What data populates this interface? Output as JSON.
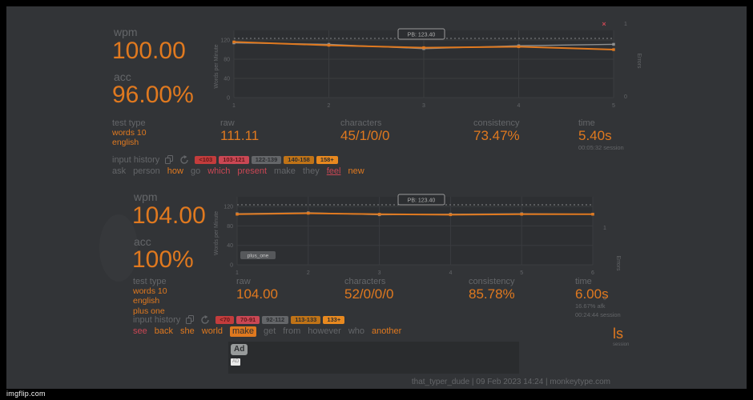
{
  "accent": "#e0791f",
  "watermark": "imgflip.com",
  "footer": "that_typer_dude | 09 Feb 2023 14:24 | monkeytype.com",
  "side_text": {
    "text": "ls",
    "sub": "session"
  },
  "ad": {
    "badge": "Ad",
    "badge_small": "AD"
  },
  "results": [
    {
      "wpm_label": "wpm",
      "wpm_value": "100.00",
      "acc_label": "acc",
      "acc_value": "96.00%",
      "test_type": {
        "label": "test type",
        "lines": [
          "words 10",
          "english"
        ]
      },
      "stats": [
        {
          "label": "raw",
          "value": "111.11"
        },
        {
          "label": "characters",
          "value": "45/1/0/0"
        },
        {
          "label": "consistency",
          "value": "73.47%"
        },
        {
          "label": "time",
          "value": "5.40s",
          "subs": [
            "00:05:32 session"
          ]
        }
      ],
      "input_history": {
        "label": "input history",
        "icons": [
          "copy-icon",
          "restart-icon"
        ],
        "legend": [
          {
            "text": "<103",
            "bg": "#c33c3c",
            "fg": "#5e1a1a"
          },
          {
            "text": "103-121",
            "bg": "#ca4754",
            "fg": "#5e1a1a"
          },
          {
            "text": "122-139",
            "bg": "#646669",
            "fg": "#2c2e31"
          },
          {
            "text": "140-158",
            "bg": "#bf7317",
            "fg": "#2c2e31"
          },
          {
            "text": "158+",
            "bg": "#e8891f",
            "fg": "#2c2e31"
          }
        ],
        "words": [
          {
            "text": "ask",
            "style": "gray"
          },
          {
            "text": "person",
            "style": "gray"
          },
          {
            "text": "how",
            "style": "orange"
          },
          {
            "text": "go",
            "style": "gray"
          },
          {
            "text": "which",
            "style": "red"
          },
          {
            "text": "present",
            "style": "red"
          },
          {
            "text": "make",
            "style": "gray"
          },
          {
            "text": "they",
            "style": "gray"
          },
          {
            "text": "feel",
            "style": "red error"
          },
          {
            "text": "new",
            "style": "orange"
          }
        ]
      }
    },
    {
      "wpm_label": "wpm",
      "wpm_value": "104.00",
      "acc_label": "acc",
      "acc_value": "100%",
      "test_type": {
        "label": "test type",
        "lines": [
          "words 10",
          "english",
          "plus one"
        ]
      },
      "stats": [
        {
          "label": "raw",
          "value": "104.00"
        },
        {
          "label": "characters",
          "value": "52/0/0/0"
        },
        {
          "label": "consistency",
          "value": "85.78%"
        },
        {
          "label": "time",
          "value": "6.00s",
          "subs": [
            "16.67% afk",
            "00:24:44 session"
          ]
        }
      ],
      "input_history": {
        "label": "input history",
        "icons": [
          "copy-icon",
          "restart-icon"
        ],
        "legend": [
          {
            "text": "<70",
            "bg": "#c33c3c",
            "fg": "#5e1a1a"
          },
          {
            "text": "70-91",
            "bg": "#ca4754",
            "fg": "#5e1a1a"
          },
          {
            "text": "92-112",
            "bg": "#646669",
            "fg": "#2c2e31"
          },
          {
            "text": "113-133",
            "bg": "#bf7317",
            "fg": "#2c2e31"
          },
          {
            "text": "133+",
            "bg": "#e8891f",
            "fg": "#2c2e31"
          }
        ],
        "words": [
          {
            "text": "see",
            "style": "red"
          },
          {
            "text": "back",
            "style": "orange"
          },
          {
            "text": "she",
            "style": "orange"
          },
          {
            "text": "world",
            "style": "orange"
          },
          {
            "text": "make",
            "style": "pill"
          },
          {
            "text": "get",
            "style": "gray"
          },
          {
            "text": "from",
            "style": "gray"
          },
          {
            "text": "however",
            "style": "gray"
          },
          {
            "text": "who",
            "style": "gray"
          },
          {
            "text": "another",
            "style": "orange"
          }
        ]
      }
    }
  ],
  "chart_data": [
    {
      "type": "line",
      "x": [
        1,
        2,
        3,
        4,
        5
      ],
      "series": [
        {
          "name": "wpm",
          "color": "#e0791f",
          "values": [
            116,
            109,
            104,
            106,
            100
          ]
        },
        {
          "name": "raw",
          "color": "#8e9091",
          "values": [
            114,
            111,
            102,
            108,
            111
          ]
        }
      ],
      "errors": [
        {
          "x": 5,
          "count": 1
        }
      ],
      "pb": 123.4,
      "pb_label": "PB: 123.40",
      "ylabel": "Words per Minute",
      "y2label": "Errors",
      "yticks": [
        0,
        40,
        80,
        120
      ],
      "y2ticks": [
        1,
        0
      ],
      "ylim": [
        0,
        130
      ],
      "badge": null
    },
    {
      "type": "line",
      "x": [
        1,
        2,
        3,
        4,
        5,
        6
      ],
      "series": [
        {
          "name": "wpm",
          "color": "#e0791f",
          "values": [
            104,
            106,
            104,
            103,
            104,
            104
          ]
        },
        {
          "name": "raw",
          "color": "#8e9091",
          "values": [
            105,
            107,
            103,
            104,
            105,
            104
          ]
        }
      ],
      "errors": [],
      "pb": 123.4,
      "pb_label": "PB: 123.40",
      "ylabel": "Words per Minute",
      "y2label": "Errors",
      "yticks": [
        0,
        40,
        80,
        120
      ],
      "y2ticks": [
        1,
        0
      ],
      "ylim": [
        0,
        130
      ],
      "badge": "plus_one"
    }
  ]
}
